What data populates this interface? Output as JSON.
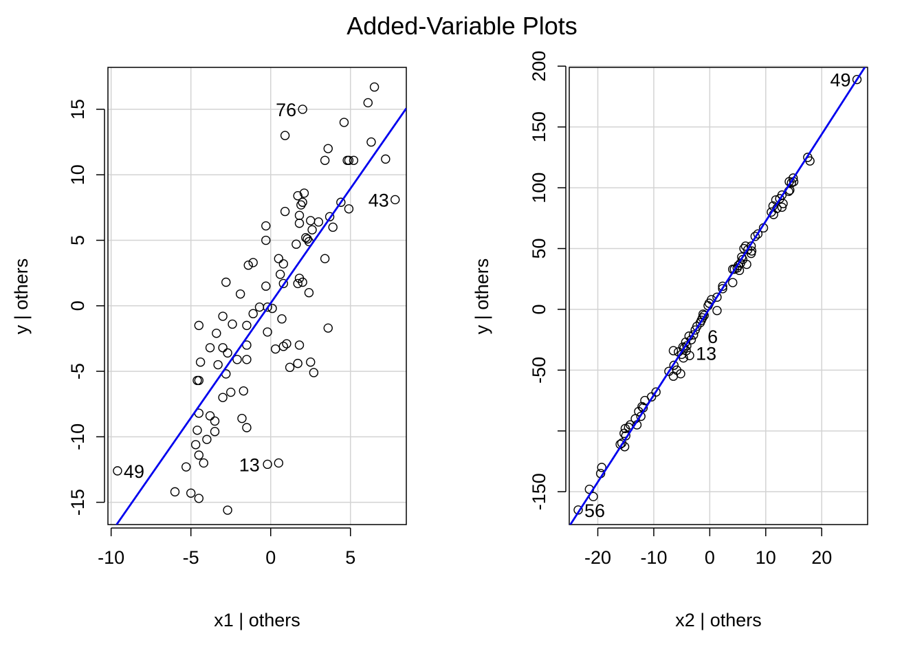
{
  "figure": {
    "title": "Added-Variable Plots"
  },
  "chart_data": [
    {
      "type": "scatter",
      "title": "",
      "xlabel": "x1 | others",
      "ylabel": "y  | others",
      "xlim": [
        -10.2,
        8.5
      ],
      "ylim": [
        -16.7,
        18.2
      ],
      "xticks": [
        -10,
        -5,
        0,
        5
      ],
      "xtick_labels": [
        "-10",
        "-5",
        "0",
        "5"
      ],
      "yticks": [
        -15,
        -10,
        -5,
        0,
        5,
        10,
        15
      ],
      "ytick_labels": [
        "-15",
        "-10",
        "-5",
        "0",
        "5",
        "10",
        "15"
      ],
      "grid": true,
      "line": {
        "slope": 1.75,
        "intercept": 0.2,
        "color": "#0000ee"
      },
      "point_color": "#000000",
      "labels": [
        {
          "text": "76",
          "x": 2.0,
          "y": 15.0,
          "side": "left"
        },
        {
          "text": "43",
          "x": 7.8,
          "y": 8.1,
          "side": "left"
        },
        {
          "text": "49",
          "x": -9.6,
          "y": -12.6,
          "side": "right"
        },
        {
          "text": "13",
          "x": -0.3,
          "y": -12.1,
          "side": "left"
        }
      ],
      "points": [
        [
          2.0,
          15.0
        ],
        [
          6.5,
          16.7
        ],
        [
          6.1,
          15.5
        ],
        [
          4.6,
          14.0
        ],
        [
          0.9,
          13.0
        ],
        [
          6.3,
          12.5
        ],
        [
          3.6,
          12.0
        ],
        [
          3.4,
          11.1
        ],
        [
          7.2,
          11.2
        ],
        [
          4.8,
          11.1
        ],
        [
          4.9,
          11.1
        ],
        [
          5.2,
          11.1
        ],
        [
          2.1,
          8.6
        ],
        [
          1.7,
          8.4
        ],
        [
          2.0,
          7.9
        ],
        [
          1.9,
          7.7
        ],
        [
          4.4,
          7.9
        ],
        [
          4.9,
          7.4
        ],
        [
          7.8,
          8.1
        ],
        [
          0.9,
          7.2
        ],
        [
          1.8,
          6.9
        ],
        [
          3.7,
          6.8
        ],
        [
          2.5,
          6.5
        ],
        [
          3.0,
          6.4
        ],
        [
          1.8,
          6.3
        ],
        [
          3.9,
          6.0
        ],
        [
          -0.3,
          6.1
        ],
        [
          2.6,
          5.8
        ],
        [
          2.2,
          5.2
        ],
        [
          2.3,
          5.1
        ],
        [
          2.4,
          4.9
        ],
        [
          -0.3,
          5.0
        ],
        [
          1.6,
          4.7
        ],
        [
          3.4,
          3.6
        ],
        [
          -1.1,
          3.3
        ],
        [
          -1.4,
          3.1
        ],
        [
          0.5,
          3.6
        ],
        [
          0.8,
          3.2
        ],
        [
          0.6,
          2.4
        ],
        [
          1.8,
          2.1
        ],
        [
          1.7,
          1.7
        ],
        [
          2.0,
          1.8
        ],
        [
          0.8,
          1.7
        ],
        [
          -0.3,
          1.5
        ],
        [
          -2.8,
          1.8
        ],
        [
          -1.9,
          0.9
        ],
        [
          2.4,
          1.0
        ],
        [
          -0.7,
          -0.1
        ],
        [
          -0.2,
          -0.1
        ],
        [
          0.1,
          -0.2
        ],
        [
          -1.1,
          -0.6
        ],
        [
          -3.0,
          -0.8
        ],
        [
          0.7,
          -1.0
        ],
        [
          -4.5,
          -1.5
        ],
        [
          -1.5,
          -1.5
        ],
        [
          -2.4,
          -1.4
        ],
        [
          3.6,
          -1.7
        ],
        [
          -0.2,
          -2.0
        ],
        [
          -3.4,
          -2.1
        ],
        [
          -1.5,
          -3.0
        ],
        [
          1.0,
          -2.9
        ],
        [
          1.8,
          -3.0
        ],
        [
          -3.8,
          -3.2
        ],
        [
          -3.0,
          -3.2
        ],
        [
          0.8,
          -3.1
        ],
        [
          0.3,
          -3.3
        ],
        [
          -2.7,
          -3.6
        ],
        [
          -2.1,
          -4.1
        ],
        [
          -1.5,
          -4.1
        ],
        [
          -4.4,
          -4.3
        ],
        [
          -3.3,
          -4.5
        ],
        [
          1.7,
          -4.4
        ],
        [
          2.5,
          -4.3
        ],
        [
          1.2,
          -4.7
        ],
        [
          -2.8,
          -5.2
        ],
        [
          2.7,
          -5.1
        ],
        [
          -4.6,
          -5.7
        ],
        [
          -4.5,
          -5.7
        ],
        [
          -2.5,
          -6.6
        ],
        [
          -1.7,
          -6.5
        ],
        [
          -3.0,
          -7.0
        ],
        [
          -4.5,
          -8.2
        ],
        [
          -3.8,
          -8.4
        ],
        [
          -3.5,
          -8.8
        ],
        [
          -1.8,
          -8.6
        ],
        [
          -1.5,
          -9.3
        ],
        [
          -4.6,
          -9.5
        ],
        [
          -3.5,
          -9.6
        ],
        [
          -4.7,
          -10.6
        ],
        [
          -4.0,
          -10.2
        ],
        [
          -4.5,
          -11.4
        ],
        [
          -4.2,
          -12.0
        ],
        [
          -0.2,
          -12.1
        ],
        [
          0.5,
          -12.0
        ],
        [
          -5.3,
          -12.3
        ],
        [
          -9.6,
          -12.6
        ],
        [
          -6.0,
          -14.2
        ],
        [
          -5.0,
          -14.3
        ],
        [
          -4.5,
          -14.7
        ],
        [
          -2.7,
          -15.6
        ]
      ]
    },
    {
      "type": "scatter",
      "title": "",
      "xlabel": "x2 | others",
      "ylabel": "y  | others",
      "xlim": [
        -25.1,
        28.2
      ],
      "ylim": [
        -177,
        199
      ],
      "xticks": [
        -20,
        -10,
        0,
        10,
        20
      ],
      "xtick_labels": [
        "-20",
        "-10",
        "0",
        "10",
        "20"
      ],
      "yticks": [
        -150,
        -50,
        0,
        50,
        100,
        150,
        200
      ],
      "ytick_labels": [
        "-150",
        "-50",
        "0",
        "50",
        "100",
        "150",
        "200"
      ],
      "yticks_unlabeled": [
        -100
      ],
      "grid": true,
      "line": {
        "slope": 7.15,
        "intercept": 1.0,
        "color": "#0000ee"
      },
      "point_color": "#000000",
      "labels": [
        {
          "text": "49",
          "x": 26.3,
          "y": 189,
          "side": "left"
        },
        {
          "text": "6",
          "x": -1.5,
          "y": -22,
          "side": "right"
        },
        {
          "text": "13",
          "x": -3.6,
          "y": -36,
          "side": "right"
        },
        {
          "text": "56",
          "x": -23.5,
          "y": -165,
          "side": "right"
        }
      ],
      "points": [
        [
          26.3,
          189
        ],
        [
          17.5,
          125
        ],
        [
          17.9,
          122
        ],
        [
          14.9,
          108
        ],
        [
          15.0,
          105
        ],
        [
          14.6,
          104
        ],
        [
          14.2,
          105
        ],
        [
          14.3,
          98
        ],
        [
          14.1,
          97
        ],
        [
          12.9,
          94
        ],
        [
          12.5,
          91
        ],
        [
          11.8,
          90
        ],
        [
          13.1,
          87
        ],
        [
          11.3,
          85
        ],
        [
          12.0,
          83
        ],
        [
          12.9,
          84
        ],
        [
          11.0,
          80
        ],
        [
          11.4,
          78
        ],
        [
          9.6,
          67
        ],
        [
          8.6,
          62
        ],
        [
          8.1,
          60
        ],
        [
          7.4,
          52
        ],
        [
          6.4,
          52
        ],
        [
          6.1,
          50
        ],
        [
          6.8,
          49
        ],
        [
          7.5,
          48
        ],
        [
          7.4,
          46
        ],
        [
          5.7,
          43
        ],
        [
          5.9,
          41
        ],
        [
          5.5,
          38
        ],
        [
          6.6,
          37
        ],
        [
          5.1,
          36
        ],
        [
          4.9,
          34
        ],
        [
          4.4,
          33
        ],
        [
          4.1,
          33
        ],
        [
          5.3,
          32
        ],
        [
          4.1,
          22
        ],
        [
          2.3,
          19
        ],
        [
          2.3,
          17
        ],
        [
          1.3,
          10
        ],
        [
          0.3,
          8
        ],
        [
          -0.1,
          5
        ],
        [
          -0.3,
          3
        ],
        [
          1.3,
          -1
        ],
        [
          -1.2,
          -4
        ],
        [
          -1.0,
          -5
        ],
        [
          -1.3,
          -7
        ],
        [
          -1.5,
          -9
        ],
        [
          -1.7,
          -11
        ],
        [
          -2.3,
          -14
        ],
        [
          -2.6,
          -17
        ],
        [
          -2.9,
          -21
        ],
        [
          -3.7,
          -22
        ],
        [
          -3.3,
          -25
        ],
        [
          -4.3,
          -27
        ],
        [
          -4.1,
          -30
        ],
        [
          -4.6,
          -32
        ],
        [
          -4.8,
          -31
        ],
        [
          -4.2,
          -34
        ],
        [
          -3.6,
          -38
        ],
        [
          -5.0,
          -37
        ],
        [
          -5.6,
          -35
        ],
        [
          -6.5,
          -34
        ],
        [
          -4.7,
          -40
        ],
        [
          -6.4,
          -46
        ],
        [
          -5.9,
          -50
        ],
        [
          -5.2,
          -53
        ],
        [
          -6.5,
          -55
        ],
        [
          -7.3,
          -51
        ],
        [
          -9.6,
          -68
        ],
        [
          -10.4,
          -72
        ],
        [
          -11.6,
          -75
        ],
        [
          -12.1,
          -80
        ],
        [
          -11.9,
          -81
        ],
        [
          -12.3,
          -88
        ],
        [
          -12.7,
          -84
        ],
        [
          -13.3,
          -90
        ],
        [
          -13.0,
          -95
        ],
        [
          -14.2,
          -95
        ],
        [
          -14.5,
          -97
        ],
        [
          -15.1,
          -98
        ],
        [
          -15.3,
          -102
        ],
        [
          -15.0,
          -104
        ],
        [
          -15.7,
          -110
        ],
        [
          -15.2,
          -113
        ],
        [
          -16.0,
          -111
        ],
        [
          -19.3,
          -130
        ],
        [
          -19.5,
          -135
        ],
        [
          -21.5,
          -148
        ],
        [
          -20.8,
          -154
        ],
        [
          -23.5,
          -165
        ]
      ]
    }
  ]
}
